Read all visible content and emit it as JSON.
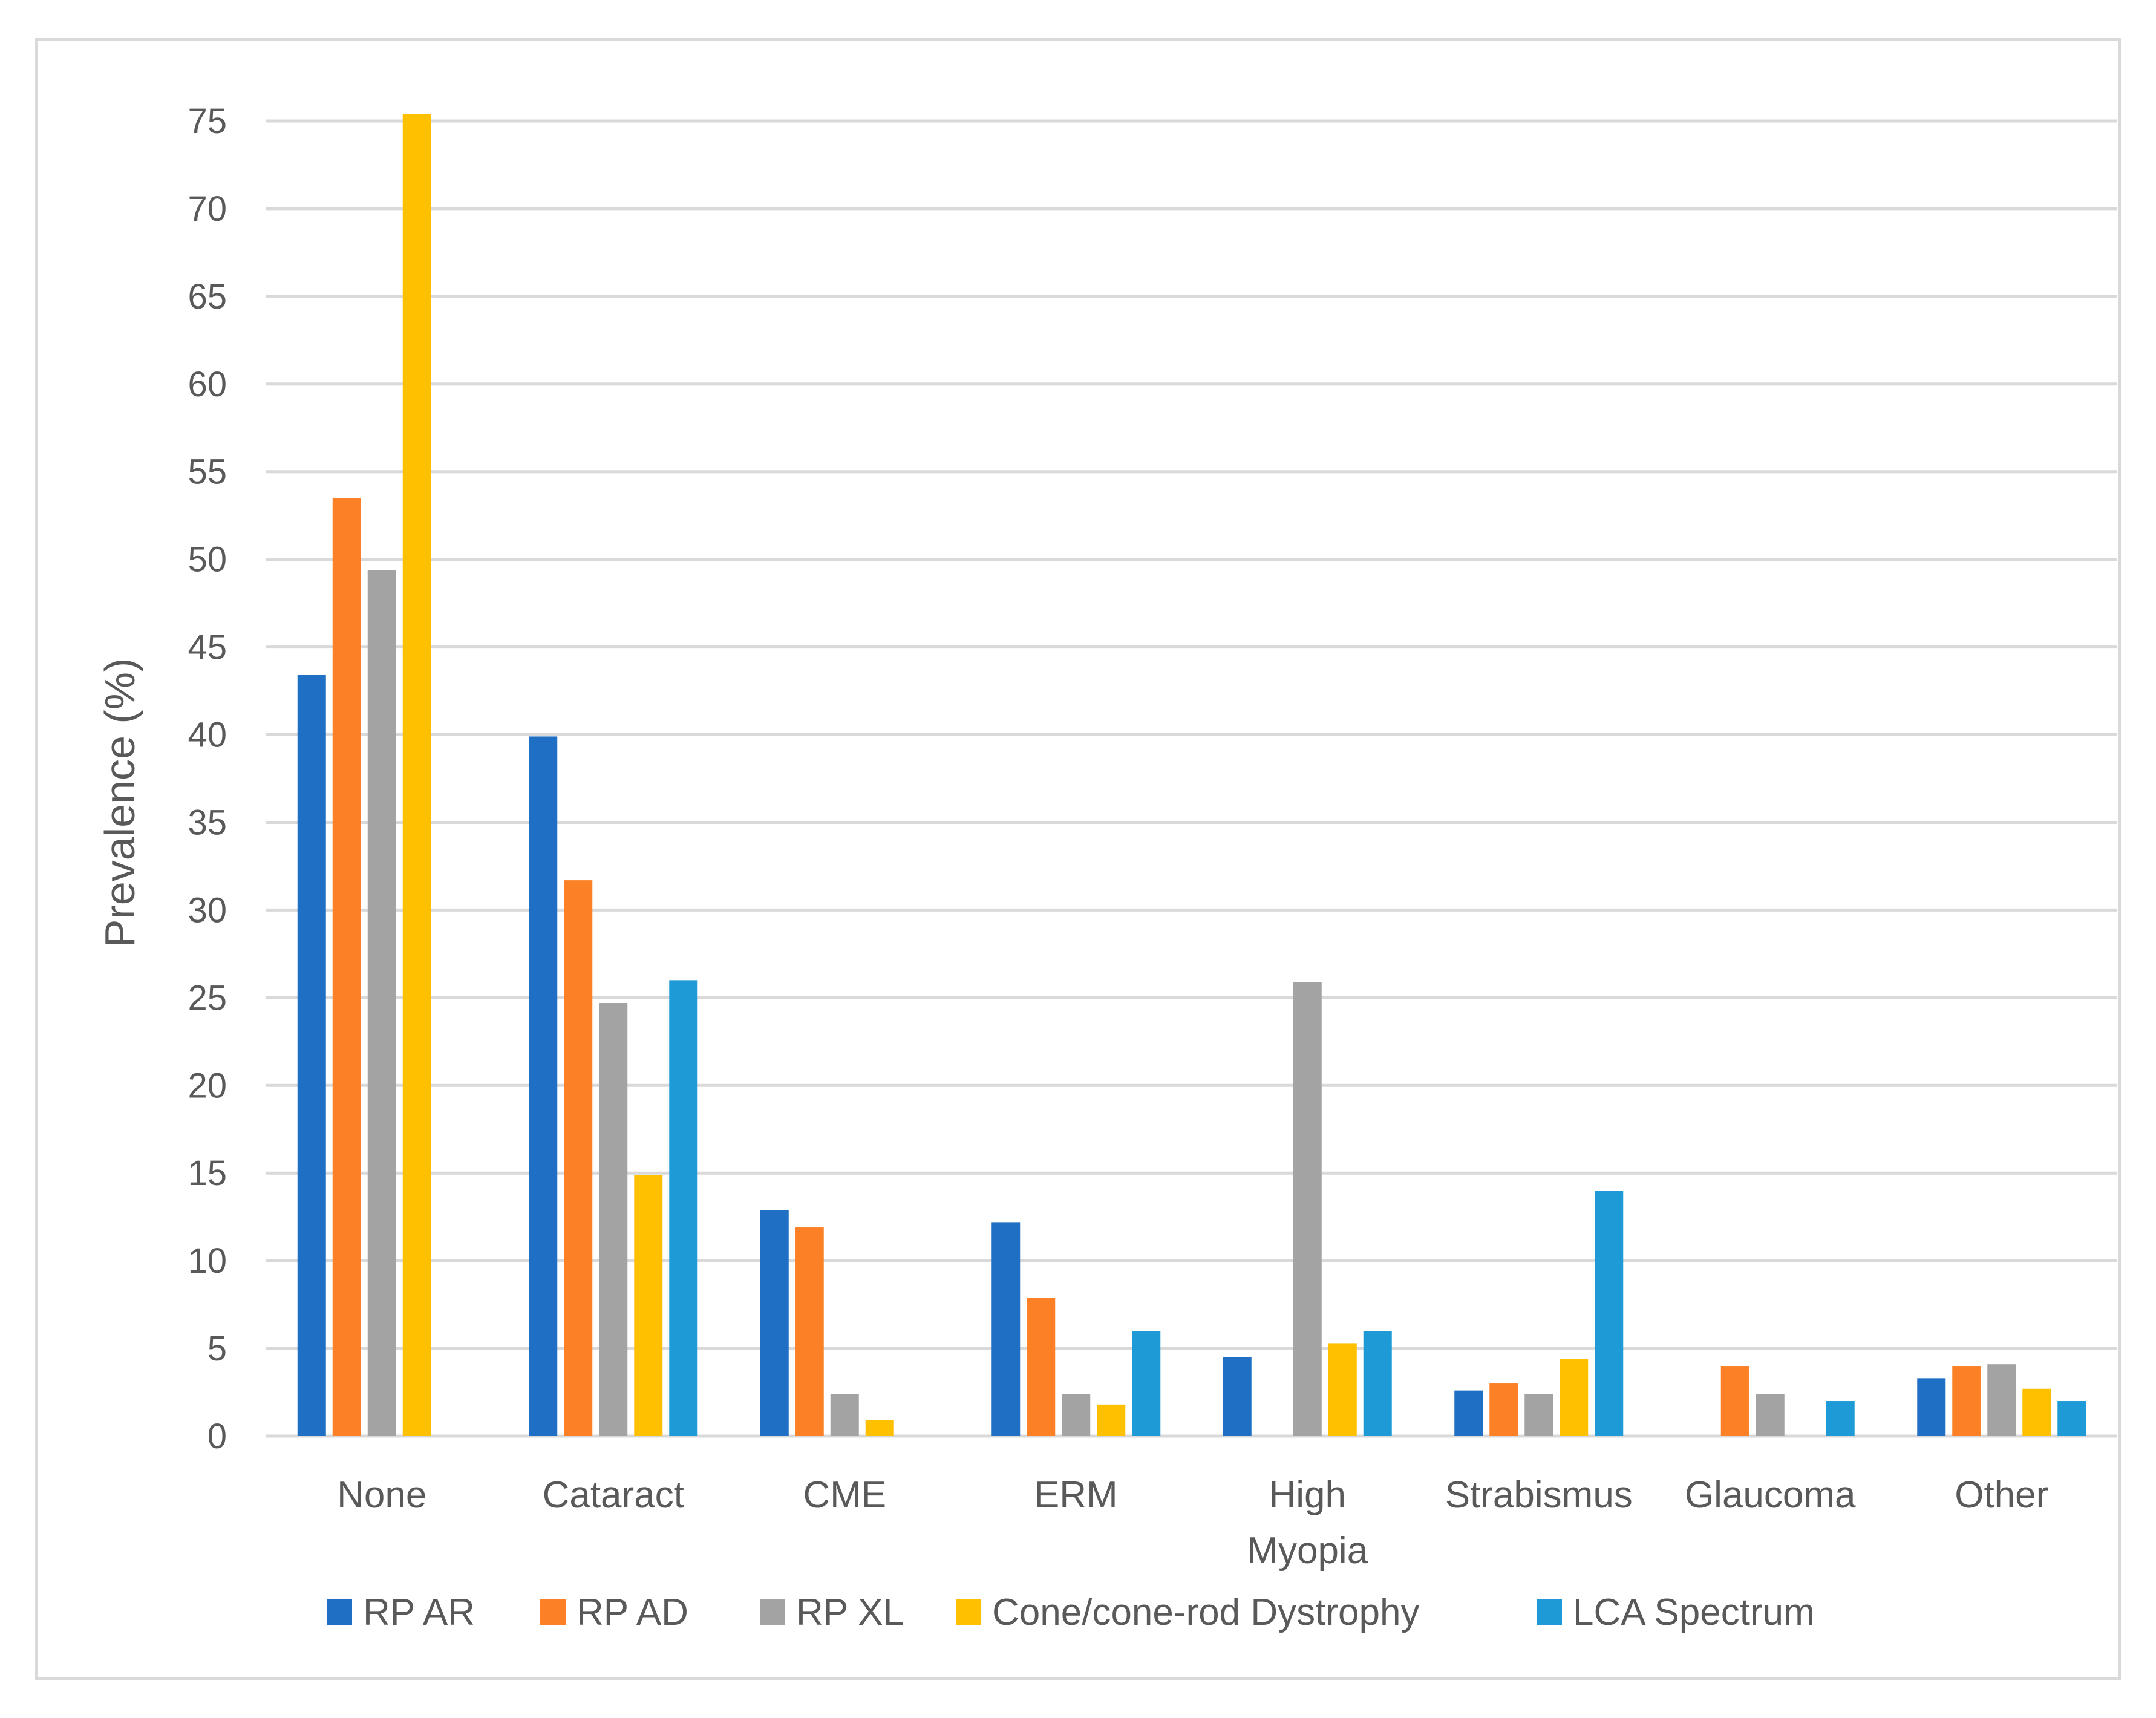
{
  "chart_data": {
    "type": "bar",
    "title": "",
    "xlabel": "",
    "ylabel": "Prevalence (%)",
    "ylim": [
      0,
      75
    ],
    "yticks": [
      0,
      5,
      10,
      15,
      20,
      25,
      30,
      35,
      40,
      45,
      50,
      55,
      60,
      65,
      70,
      75
    ],
    "grid": true,
    "legend_position": "bottom",
    "categories": [
      [
        "None"
      ],
      [
        "Cataract"
      ],
      [
        "CME"
      ],
      [
        "ERM"
      ],
      [
        "High",
        "Myopia"
      ],
      [
        "Strabismus"
      ],
      [
        "Glaucoma"
      ],
      [
        "Other"
      ]
    ],
    "series": [
      {
        "name": "RP AR",
        "color": "#1f6fc4",
        "values": [
          43.4,
          39.9,
          12.9,
          12.2,
          4.5,
          2.6,
          0,
          3.3
        ]
      },
      {
        "name": "RP AD",
        "color": "#fb8026",
        "values": [
          53.5,
          31.7,
          11.9,
          7.9,
          0,
          3.0,
          4.0,
          4.0
        ]
      },
      {
        "name": "RP XL",
        "color": "#a3a3a3",
        "values": [
          49.4,
          24.7,
          2.4,
          2.4,
          25.9,
          2.4,
          2.4,
          4.1
        ]
      },
      {
        "name": "Cone/cone-rod Dystrophy",
        "color": "#ffc000",
        "values": [
          75.4,
          14.9,
          0.9,
          1.8,
          5.3,
          4.4,
          0,
          2.7
        ]
      },
      {
        "name": "LCA Spectrum",
        "color": "#1e9bd7",
        "values": [
          0,
          26.0,
          0,
          6.0,
          6.0,
          14.0,
          2.0,
          2.0
        ]
      }
    ]
  }
}
